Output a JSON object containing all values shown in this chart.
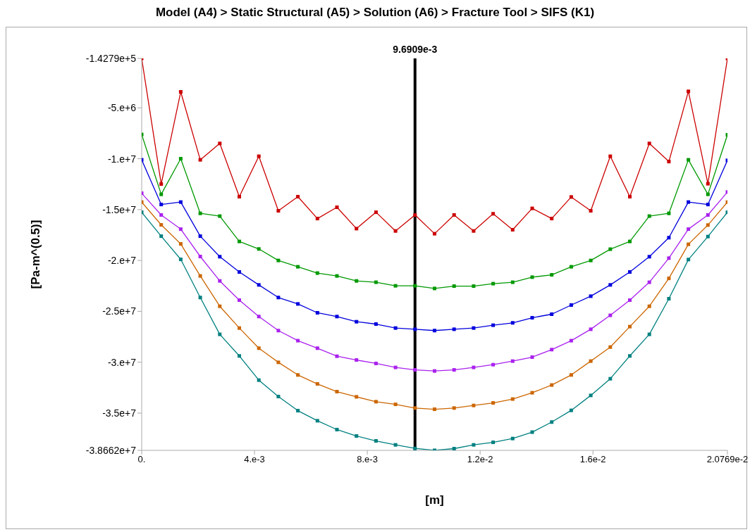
{
  "chart_data": {
    "type": "line",
    "title": "Model (A4) > Static Structural (A5) > Solution (A6) > Fracture Tool > SIFS (K1)",
    "xlabel": "[m]",
    "ylabel": "[Pa-m^(0.5)]",
    "x": [
      0,
      0.0006923,
      0.0013846,
      0.0020769,
      0.0027692,
      0.0034615,
      0.0041538,
      0.0048461,
      0.0055384,
      0.0062307,
      0.006923,
      0.0076153,
      0.0083076,
      0.0089999,
      0.0096922,
      0.0103845,
      0.0110768,
      0.0117691,
      0.0124614,
      0.0131537,
      0.013846,
      0.0145383,
      0.0152306,
      0.0159229,
      0.0166152,
      0.0173075,
      0.0179998,
      0.0186921,
      0.0193844,
      0.0200767,
      0.020769
    ],
    "series": [
      {
        "color": "#cc0000",
        "values": [
          -142790,
          -12490000,
          -3430000,
          -10110000,
          -8500000,
          -13730000,
          -9760000,
          -15120000,
          -13730000,
          -15880000,
          -14770000,
          -16870000,
          -15260000,
          -17100000,
          -15530000,
          -17370000,
          -15530000,
          -17100000,
          -15410000,
          -16980000,
          -14880000,
          -15880000,
          -13760000,
          -15120000,
          -9760000,
          -13730000,
          -8500000,
          -10280000,
          -3380000,
          -12460000,
          -142790
        ]
      },
      {
        "color": "#009900",
        "values": [
          -7620000,
          -13500000,
          -10000000,
          -15370000,
          -15640000,
          -18130000,
          -18870000,
          -20000000,
          -20620000,
          -21240000,
          -21520000,
          -22010000,
          -22140000,
          -22490000,
          -22490000,
          -22750000,
          -22520000,
          -22520000,
          -22280000,
          -22140000,
          -21640000,
          -21410000,
          -20620000,
          -20000000,
          -18890000,
          -18130000,
          -15640000,
          -15370000,
          -10110000,
          -13500000,
          -7650000
        ]
      },
      {
        "color": "#0000dd",
        "values": [
          -10110000,
          -14500000,
          -14260000,
          -17610000,
          -19630000,
          -21130000,
          -22400000,
          -23640000,
          -24270000,
          -25140000,
          -25510000,
          -26020000,
          -26250000,
          -26640000,
          -26760000,
          -26890000,
          -26760000,
          -26640000,
          -26360000,
          -26130000,
          -25630000,
          -25280000,
          -24380000,
          -23510000,
          -22400000,
          -21130000,
          -19630000,
          -17760000,
          -14260000,
          -14500000,
          -10160000
        ]
      },
      {
        "color": "#aa22ee",
        "values": [
          -13390000,
          -15530000,
          -16920000,
          -19610000,
          -22010000,
          -23900000,
          -25510000,
          -26890000,
          -27880000,
          -28620000,
          -29410000,
          -29780000,
          -30120000,
          -30510000,
          -30750000,
          -30860000,
          -30750000,
          -30510000,
          -30240000,
          -29890000,
          -29500000,
          -28760000,
          -27880000,
          -26760000,
          -25390000,
          -23900000,
          -22140000,
          -19770000,
          -16920000,
          -15530000,
          -13270000
        ]
      },
      {
        "color": "#cc6600",
        "values": [
          -14260000,
          -16500000,
          -18370000,
          -21520000,
          -24500000,
          -26640000,
          -28620000,
          -30010000,
          -31250000,
          -32130000,
          -32890000,
          -33400000,
          -33880000,
          -34140000,
          -34500000,
          -34620000,
          -34500000,
          -34250000,
          -34000000,
          -33620000,
          -33000000,
          -32240000,
          -31250000,
          -29890000,
          -28510000,
          -26500000,
          -24500000,
          -21760000,
          -18410000,
          -16520000,
          -14260000
        ]
      },
      {
        "color": "#008080",
        "values": [
          -15260000,
          -17610000,
          -19890000,
          -23640000,
          -27260000,
          -29380000,
          -31760000,
          -33370000,
          -34760000,
          -35750000,
          -36620000,
          -37250000,
          -37730000,
          -38120000,
          -38470000,
          -38660000,
          -38490000,
          -38120000,
          -37870000,
          -37500000,
          -36870000,
          -35880000,
          -34730000,
          -33260000,
          -31620000,
          -29380000,
          -27260000,
          -23760000,
          -19910000,
          -17650000,
          -15260000
        ]
      }
    ],
    "xlim": [
      0,
      0.020769
    ],
    "xticks": [
      {
        "value": 0,
        "label": "0."
      },
      {
        "value": 0.004,
        "label": "4.e-3"
      },
      {
        "value": 0.008,
        "label": "8.e-3"
      },
      {
        "value": 0.012,
        "label": "1.2e-2"
      },
      {
        "value": 0.016,
        "label": "1.6e-2"
      },
      {
        "value": 0.020769,
        "label": "2.0769e-2"
      }
    ],
    "ylim": [
      -38662000,
      -142790
    ],
    "yticks": [
      {
        "value": -142790,
        "label": "-1.4279e+5"
      },
      {
        "value": -5000000,
        "label": "-5.e+6"
      },
      {
        "value": -10000000,
        "label": "-1.e+7"
      },
      {
        "value": -15000000,
        "label": "-1.5e+7"
      },
      {
        "value": -20000000,
        "label": "-2.e+7"
      },
      {
        "value": -25000000,
        "label": "-2.5e+7"
      },
      {
        "value": -30000000,
        "label": "-3.e+7"
      },
      {
        "value": -35000000,
        "label": "-3.5e+7"
      },
      {
        "value": -38662000,
        "label": "-3.8662e+7"
      }
    ],
    "ref_lines": [
      {
        "axis": "x",
        "value": 0.0096909,
        "label": "9.6909e-3",
        "color": "#000000"
      }
    ],
    "marker": "square",
    "line_style": "solid",
    "grid": false
  }
}
